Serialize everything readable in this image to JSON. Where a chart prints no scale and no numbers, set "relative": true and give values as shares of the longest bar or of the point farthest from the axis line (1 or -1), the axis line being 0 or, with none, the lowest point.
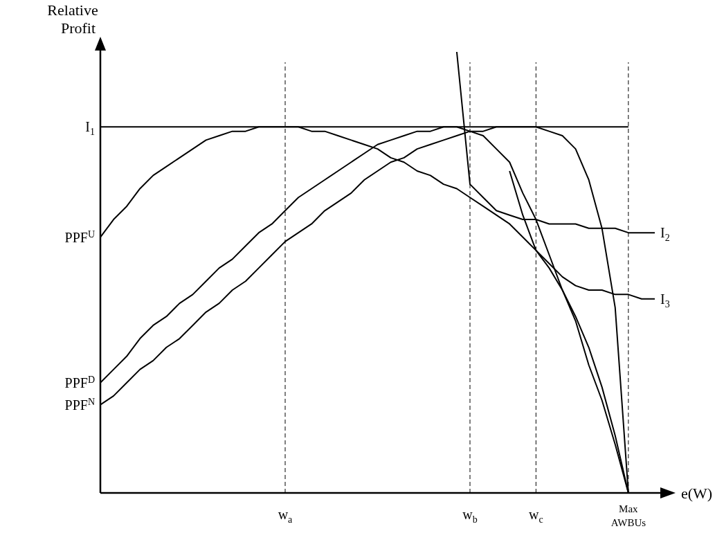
{
  "chart_data": {
    "type": "line",
    "relative": true,
    "xlabel": "e(W)",
    "ylabel": "Relative Profit",
    "tick_labels": "x",
    "legend": false,
    "marker": "none",
    "line_style": "solid",
    "categories": [
      null,
      null,
      null,
      null,
      null,
      null,
      null,
      null,
      null,
      null,
      null,
      null,
      null,
      null,
      "w$_{a}$",
      null,
      null,
      null,
      null,
      null,
      null,
      null,
      null,
      null,
      null,
      null,
      null,
      null,
      "w$_{b}$",
      null,
      null,
      null,
      null,
      "w$_{c}$",
      null,
      null,
      null,
      null,
      null,
      null,
      "Max AWBUs",
      null,
      null
    ],
    "series": [
      {
        "name": "PPF$^{U}$",
        "color": "#000000",
        "values": [
          0.58,
          0.62,
          0.65,
          0.69,
          0.72,
          0.74,
          0.76,
          0.78,
          0.8,
          0.81,
          0.82,
          0.82,
          0.83,
          0.83,
          0.83,
          0.83,
          0.82,
          0.82,
          0.81,
          0.8,
          0.79,
          0.78,
          0.76,
          0.75,
          0.73,
          0.72,
          0.7,
          0.69,
          0.67,
          0.65,
          0.63,
          0.61,
          0.58,
          0.55,
          0.51,
          0.46,
          0.4,
          0.33,
          0.24,
          0.13,
          0,
          null,
          null
        ]
      },
      {
        "name": "PPF$^{D}$",
        "color": "#000000",
        "values": [
          0.25,
          0.28,
          0.31,
          0.35,
          0.38,
          0.4,
          0.43,
          0.45,
          0.48,
          0.51,
          0.53,
          0.56,
          0.59,
          0.61,
          0.64,
          0.67,
          0.69,
          0.71,
          0.73,
          0.75,
          0.77,
          0.79,
          0.8,
          0.81,
          0.82,
          0.82,
          0.83,
          0.83,
          0.82,
          0.81,
          0.78,
          0.75,
          0.68,
          0.62,
          0.54,
          0.46,
          0.39,
          0.29,
          0.21,
          0.11,
          0,
          null,
          null
        ]
      },
      {
        "name": "PPF$^{N}$",
        "color": "#000000",
        "values": [
          0.2,
          0.22,
          0.25,
          0.28,
          0.3,
          0.33,
          0.35,
          0.38,
          0.41,
          0.43,
          0.46,
          0.48,
          0.51,
          0.54,
          0.57,
          0.59,
          0.61,
          0.64,
          0.66,
          0.68,
          0.71,
          0.73,
          0.75,
          0.76,
          0.78,
          0.79,
          0.8,
          0.81,
          0.82,
          0.82,
          0.83,
          0.83,
          0.83,
          0.83,
          0.82,
          0.81,
          0.78,
          0.71,
          0.6,
          0.42,
          0,
          null,
          null
        ]
      },
      {
        "name": "I$_{1}$",
        "color": "#000000",
        "values": [
          0.83,
          0.83,
          0.83,
          0.83,
          0.83,
          0.83,
          0.83,
          0.83,
          0.83,
          0.83,
          0.83,
          0.83,
          0.83,
          0.83,
          0.83,
          0.83,
          0.83,
          0.83,
          0.83,
          0.83,
          0.83,
          0.83,
          0.83,
          0.83,
          0.83,
          0.83,
          0.83,
          0.83,
          0.83,
          0.83,
          0.83,
          0.83,
          0.83,
          0.83,
          0.83,
          0.83,
          0.83,
          0.83,
          0.83,
          0.83,
          0.83,
          null,
          null
        ]
      },
      {
        "name": "I$_{2}$",
        "color": "#000000",
        "values": [
          null,
          null,
          null,
          null,
          null,
          null,
          null,
          null,
          null,
          null,
          null,
          null,
          null,
          null,
          null,
          null,
          null,
          null,
          null,
          null,
          null,
          null,
          null,
          null,
          null,
          null,
          null,
          1,
          0.7,
          0.67,
          0.64,
          0.63,
          0.62,
          0.62,
          0.61,
          0.61,
          0.61,
          0.6,
          0.6,
          0.6,
          0.59,
          0.59,
          0.59
        ]
      },
      {
        "name": "I$_{3}$",
        "color": "#000000",
        "values": [
          null,
          null,
          null,
          null,
          null,
          null,
          null,
          null,
          null,
          null,
          null,
          null,
          null,
          null,
          null,
          null,
          null,
          null,
          null,
          null,
          null,
          null,
          null,
          null,
          null,
          null,
          null,
          null,
          null,
          null,
          null,
          0.73,
          0.63,
          0.55,
          0.52,
          0.49,
          0.47,
          0.46,
          0.46,
          0.45,
          0.45,
          0.44,
          0.44
        ]
      }
    ],
    "ref_lines": [
      {
        "axis": "x",
        "value": "w$_{a}$",
        "line_style": "dashed"
      },
      {
        "axis": "x",
        "value": "w$_{b}$",
        "line_style": "dashed"
      },
      {
        "axis": "x",
        "value": "w$_{c}$",
        "line_style": "dashed"
      },
      {
        "axis": "x",
        "value": "Max AWBUs",
        "line_style": "dashed"
      }
    ]
  }
}
